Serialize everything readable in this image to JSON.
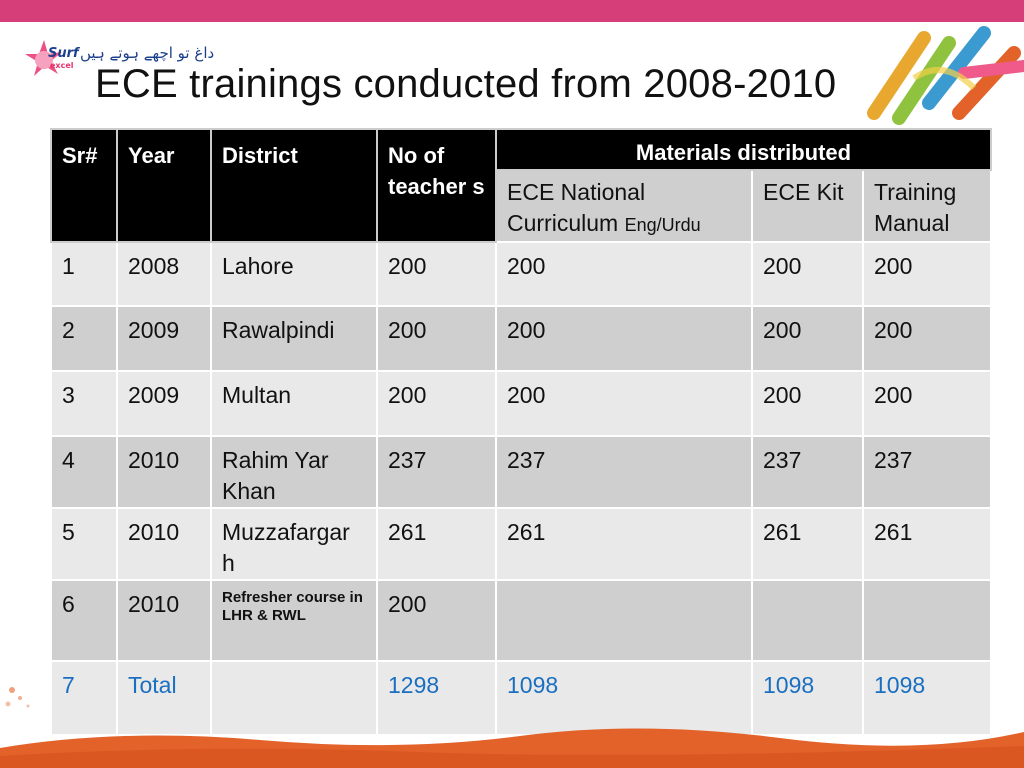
{
  "logo": {
    "brand": "Surf excel",
    "urdu": "داغ تو اچھے ہوتے ہیں"
  },
  "title": "ECE trainings conducted from 2008-2010",
  "table": {
    "headers": {
      "sr": "Sr#",
      "year": "Year",
      "district": "District",
      "teachers": "No of teacher s",
      "materials": "Materials distributed",
      "curriculum": "ECE National Curriculum",
      "curriculum_lang": "Eng/Urdu",
      "kit": "ECE Kit",
      "manual": "Training Manual"
    },
    "rows": [
      {
        "sr": "1",
        "year": "2008",
        "district": "Lahore",
        "teachers": "200",
        "curriculum": "200",
        "kit": "200",
        "manual": "200"
      },
      {
        "sr": "2",
        "year": "2009",
        "district": "Rawalpindi",
        "teachers": "200",
        "curriculum": "200",
        "kit": "200",
        "manual": "200"
      },
      {
        "sr": "3",
        "year": "2009",
        "district": "Multan",
        "teachers": "200",
        "curriculum": "200",
        "kit": "200",
        "manual": "200"
      },
      {
        "sr": "4",
        "year": "2010",
        "district": "Rahim Yar Khan",
        "teachers": "237",
        "curriculum": "237",
        "kit": "237",
        "manual": "237"
      },
      {
        "sr": "5",
        "year": "2010",
        "district": "Muzzafargar h",
        "teachers": "261",
        "curriculum": "261",
        "kit": "261",
        "manual": "261"
      },
      {
        "sr": "6",
        "year": "2010",
        "district": "Refresher course in LHR & RWL",
        "teachers": "200",
        "curriculum": "",
        "kit": "",
        "manual": ""
      }
    ],
    "total": {
      "sr": "7",
      "label": "Total",
      "district": "",
      "teachers": "1298",
      "curriculum": "1098",
      "kit": "1098",
      "manual": "1098"
    }
  },
  "colors": {
    "top_bar": "#d63e7a",
    "header_bg": "#000000",
    "row_light": "#e9e9e9",
    "row_dark": "#cfcfcf",
    "total_text": "#1a6fc0",
    "bottom_wave": "#e2622a"
  }
}
